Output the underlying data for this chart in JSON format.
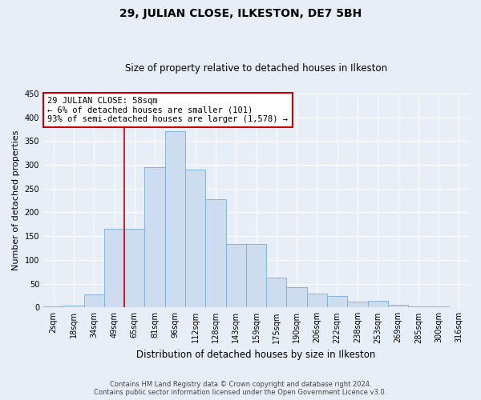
{
  "title": "29, JULIAN CLOSE, ILKESTON, DE7 5BH",
  "subtitle": "Size of property relative to detached houses in Ilkeston",
  "xlabel": "Distribution of detached houses by size in Ilkeston",
  "ylabel": "Number of detached properties",
  "categories": [
    "2sqm",
    "18sqm",
    "34sqm",
    "49sqm",
    "65sqm",
    "81sqm",
    "96sqm",
    "112sqm",
    "128sqm",
    "143sqm",
    "159sqm",
    "175sqm",
    "190sqm",
    "206sqm",
    "222sqm",
    "238sqm",
    "253sqm",
    "269sqm",
    "285sqm",
    "300sqm",
    "316sqm"
  ],
  "values": [
    2,
    4,
    28,
    165,
    165,
    295,
    370,
    290,
    228,
    134,
    134,
    62,
    43,
    29,
    24,
    13,
    14,
    5,
    2,
    2,
    1
  ],
  "bar_color": "#cddcee",
  "bar_edge_color": "#7aadd4",
  "vline_x_index": 4,
  "vline_color": "#cc0000",
  "annotation_title": "29 JULIAN CLOSE: 58sqm",
  "annotation_line1": "← 6% of detached houses are smaller (101)",
  "annotation_line2": "93% of semi-detached houses are larger (1,578) →",
  "annotation_box_color": "#cc0000",
  "ylim": [
    0,
    450
  ],
  "yticks": [
    0,
    50,
    100,
    150,
    200,
    250,
    300,
    350,
    400,
    450
  ],
  "footer_line1": "Contains HM Land Registry data © Crown copyright and database right 2024.",
  "footer_line2": "Contains public sector information licensed under the Open Government Licence v3.0.",
  "bg_color": "#e8eef8",
  "plot_bg_color": "#e8eef8",
  "title_fontsize": 10,
  "subtitle_fontsize": 8.5,
  "ylabel_fontsize": 8,
  "xlabel_fontsize": 8.5,
  "tick_fontsize": 7,
  "footer_fontsize": 6,
  "grid_color": "#ffffff"
}
